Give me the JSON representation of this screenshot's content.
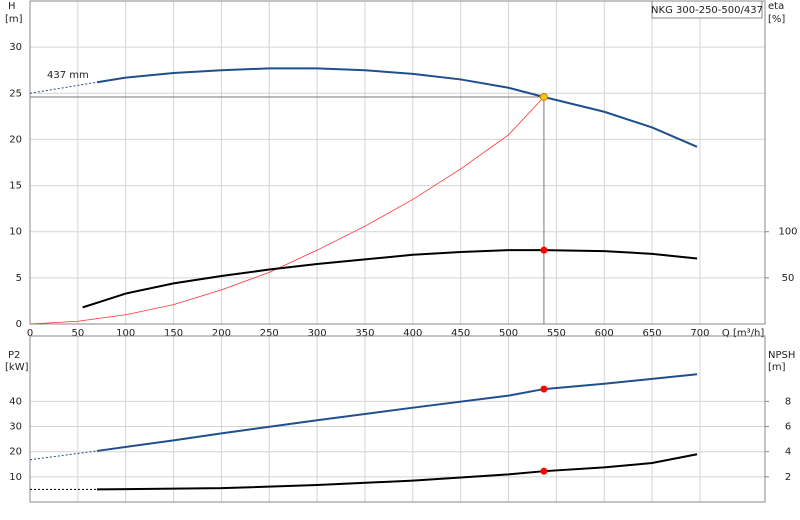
{
  "chart_data": [
    {
      "type": "line",
      "title": "NKG 300-250-500/437",
      "annotation": "437 mm",
      "ylabel": "H",
      "yunit": "[m]",
      "y2label": "eta",
      "y2unit": "[%]",
      "xlabel": "Q [m³/h]",
      "xlim": [
        0,
        768
      ],
      "xticks": [
        0,
        50,
        100,
        150,
        200,
        250,
        300,
        350,
        400,
        450,
        500,
        550,
        600,
        650,
        700
      ],
      "xtick_labels": true,
      "ylim": [
        0,
        35
      ],
      "yticks": [
        0,
        5,
        10,
        15,
        20,
        25,
        30
      ],
      "y2lim": [
        0,
        350
      ],
      "y2ticks": [
        50,
        100
      ],
      "grid": true,
      "series": [
        {
          "x": [
            0,
            70
          ],
          "values": [
            25,
            26.2
          ],
          "color": "#1f4f8f",
          "axis": "y",
          "style": "dashed"
        },
        {
          "x": [
            70,
            100,
            150,
            200,
            250,
            300,
            350,
            400,
            450,
            500,
            537,
            600,
            650,
            697
          ],
          "values": [
            26.2,
            26.7,
            27.2,
            27.5,
            27.7,
            27.7,
            27.5,
            27.1,
            26.5,
            25.6,
            24.6,
            23.0,
            21.3,
            19.2
          ],
          "color": "#1f4f8f",
          "axis": "y",
          "style": "solid"
        },
        {
          "x": [
            0,
            50,
            100,
            150,
            200,
            250,
            300,
            350,
            400,
            450,
            500,
            537
          ],
          "values": [
            0,
            0.3,
            1.0,
            2.1,
            3.7,
            5.6,
            8.0,
            10.6,
            13.5,
            16.8,
            20.5,
            24.6
          ],
          "color": "#ff3030",
          "axis": "y",
          "style": "thin"
        },
        {
          "x": [
            55,
            70,
            100,
            150,
            200,
            250,
            300,
            350,
            400,
            450,
            500,
            537,
            600,
            650,
            697
          ],
          "values": [
            18,
            23,
            33,
            44,
            52,
            59,
            65,
            70,
            75,
            78,
            80,
            80,
            79,
            76,
            71
          ],
          "color": "#000000",
          "axis": "y2",
          "style": "solid"
        },
        {
          "x": [
            537
          ],
          "values": [
            24.6
          ],
          "color": "#f5c518",
          "axis": "y",
          "style": "point",
          "guides": true
        },
        {
          "x": [
            537
          ],
          "values": [
            80
          ],
          "color": "#ff0000",
          "axis": "y2",
          "style": "point"
        }
      ]
    },
    {
      "type": "line",
      "ylabel": "P2",
      "yunit": "[kW]",
      "y2label": "NPSH",
      "y2unit": "[m]",
      "xlim": [
        0,
        768
      ],
      "xticks": [
        0,
        50,
        100,
        150,
        200,
        250,
        300,
        350,
        400,
        450,
        500,
        550,
        600,
        650,
        700
      ],
      "xtick_labels": false,
      "ylim": [
        0,
        66
      ],
      "yticks": [
        10,
        20,
        30,
        40
      ],
      "y2lim": [
        0,
        13.2
      ],
      "y2ticks": [
        2,
        4,
        6,
        8
      ],
      "grid": true,
      "series": [
        {
          "x": [
            0,
            70
          ],
          "values": [
            16.8,
            20.3
          ],
          "color": "#1f4f8f",
          "axis": "y",
          "style": "dashed"
        },
        {
          "x": [
            70,
            150,
            200,
            300,
            400,
            500,
            537,
            600,
            697
          ],
          "values": [
            20.3,
            24.5,
            27.3,
            32.5,
            37.5,
            42.3,
            44.9,
            47,
            50.8
          ],
          "color": "#1f4f8f",
          "axis": "y",
          "style": "solid"
        },
        {
          "x": [
            0,
            70
          ],
          "values": [
            1.0,
            1.0
          ],
          "color": "#000000",
          "axis": "y2",
          "style": "dashed"
        },
        {
          "x": [
            70,
            200,
            300,
            400,
            500,
            537,
            600,
            650,
            697
          ],
          "values": [
            1.0,
            1.1,
            1.35,
            1.7,
            2.2,
            2.45,
            2.75,
            3.1,
            3.8
          ],
          "color": "#000000",
          "axis": "y2",
          "style": "solid"
        },
        {
          "x": [
            537
          ],
          "values": [
            44.9
          ],
          "color": "#ff0000",
          "axis": "y",
          "style": "point"
        },
        {
          "x": [
            537
          ],
          "values": [
            2.45
          ],
          "color": "#ff0000",
          "axis": "y2",
          "style": "point"
        }
      ]
    }
  ]
}
